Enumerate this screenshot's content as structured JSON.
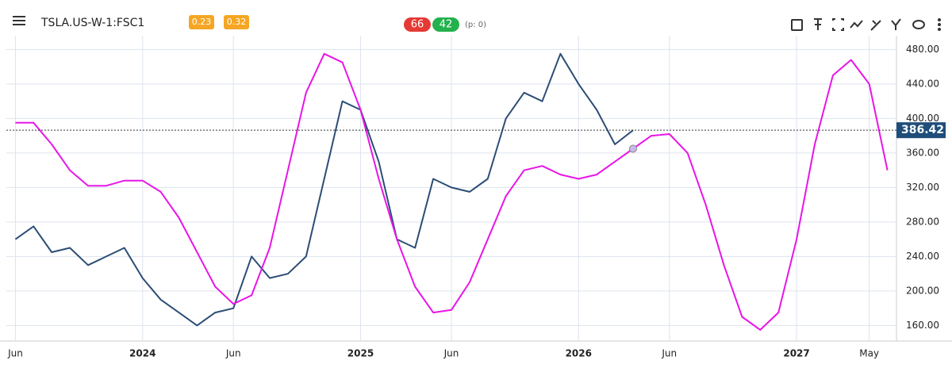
{
  "toolbar": {
    "title": "TSLA.US-W-1:FSC1",
    "badges": [
      "0.23",
      "0.32"
    ],
    "score_badges": [
      "66",
      "42"
    ],
    "p_label": "(p: 0)"
  },
  "chart_data": {
    "type": "line",
    "categories": [
      "Jun",
      null,
      null,
      null,
      null,
      null,
      null,
      "2024",
      null,
      null,
      null,
      null,
      "Jun",
      null,
      null,
      null,
      null,
      null,
      null,
      "2025",
      null,
      null,
      null,
      null,
      "Jun",
      null,
      null,
      null,
      null,
      null,
      null,
      "2026",
      null,
      null,
      null,
      null,
      "Jun",
      null,
      null,
      null,
      null,
      null,
      null,
      "2027",
      null,
      null,
      null,
      "May",
      null
    ],
    "series": [
      {
        "name": "TSLA",
        "color": "#2c4d75",
        "values": [
          260,
          275,
          245,
          250,
          230,
          240,
          250,
          215,
          190,
          175,
          160,
          175,
          180,
          240,
          215,
          220,
          240,
          330,
          420,
          410,
          350,
          260,
          250,
          330,
          320,
          315,
          330,
          400,
          430,
          420,
          475,
          440,
          410,
          370,
          386.42,
          null,
          null,
          null,
          null,
          null,
          null,
          null,
          null,
          null,
          null,
          null,
          null,
          null,
          null
        ]
      },
      {
        "name": "FSC1",
        "color": "#e815e8",
        "values": [
          395,
          395,
          370,
          340,
          322,
          322,
          328,
          328,
          315,
          285,
          245,
          205,
          185,
          195,
          250,
          340,
          430,
          475,
          465,
          410,
          330,
          260,
          205,
          175,
          178,
          210,
          260,
          310,
          340,
          345,
          335,
          330,
          335,
          350,
          365,
          380,
          382,
          360,
          300,
          230,
          170,
          155,
          175,
          260,
          370,
          450,
          468,
          440,
          340
        ]
      }
    ],
    "ylim": [
      142,
      496
    ],
    "yticks": [
      {
        "value": 160,
        "label": "160.00"
      },
      {
        "value": 200,
        "label": "200.00"
      },
      {
        "value": 240,
        "label": "240.00"
      },
      {
        "value": 280,
        "label": "280.00"
      },
      {
        "value": 320,
        "label": "320.00"
      },
      {
        "value": 360,
        "label": "360.00"
      },
      {
        "value": 400,
        "label": "400.00"
      },
      {
        "value": 440,
        "label": "440.00"
      },
      {
        "value": 480,
        "label": "480.00"
      }
    ],
    "last_price": 386.42,
    "grid": true
  }
}
